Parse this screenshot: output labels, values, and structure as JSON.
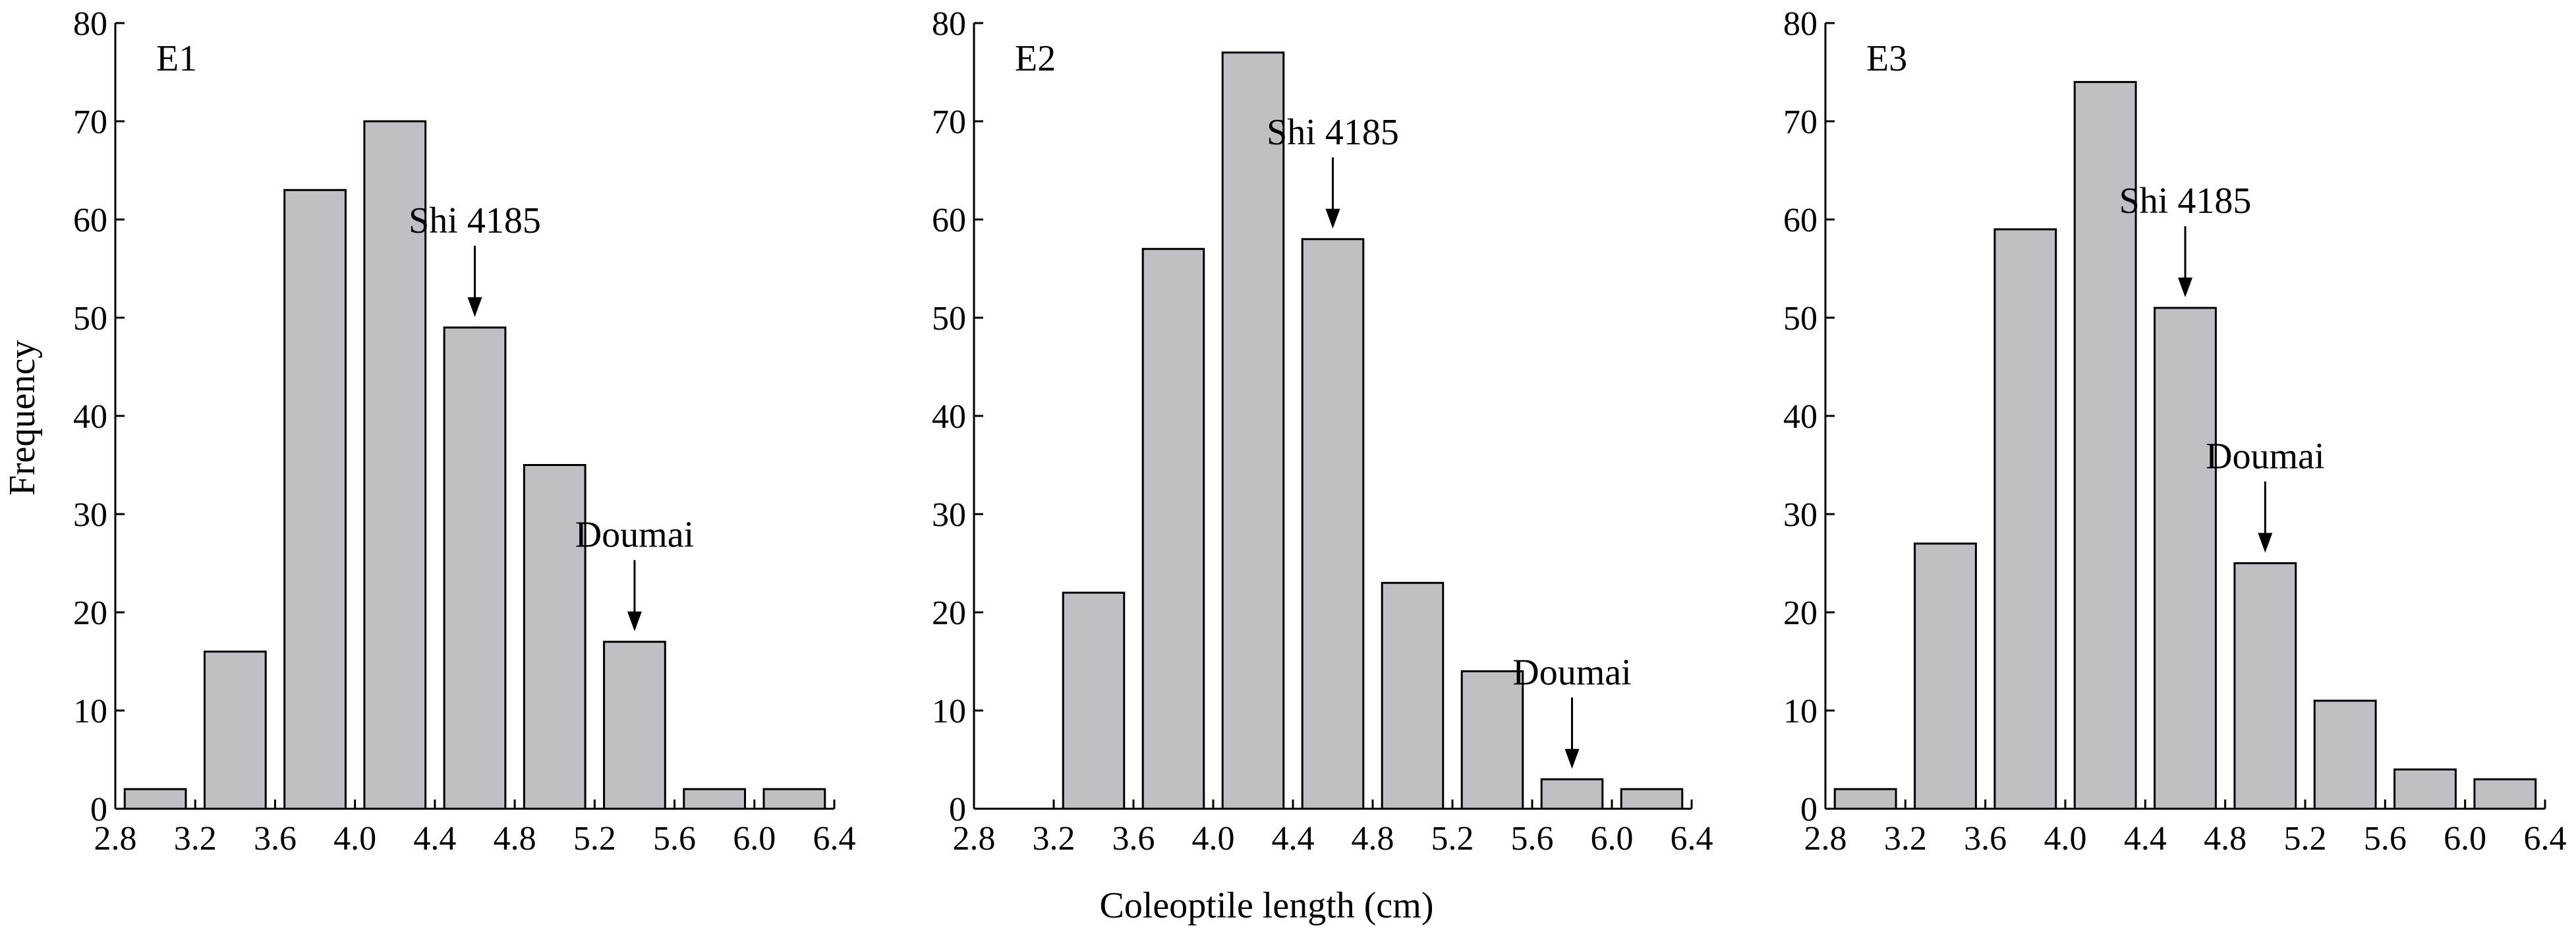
{
  "figure": {
    "ylabel": "Frequency",
    "xlabel": "Coleoptile length (cm)"
  },
  "chart_data": [
    {
      "type": "bar",
      "title": "E1",
      "bin_edges": [
        2.8,
        3.2,
        3.6,
        4.0,
        4.4,
        4.8,
        5.2,
        5.6,
        6.0,
        6.4
      ],
      "values": [
        2,
        16,
        63,
        70,
        49,
        35,
        17,
        2,
        2
      ],
      "xlim": [
        2.8,
        6.4
      ],
      "ylim": [
        0,
        80
      ],
      "xticks": [
        "2.8",
        "3.2",
        "3.6",
        "4.0",
        "4.4",
        "4.8",
        "5.2",
        "5.6",
        "6.0",
        "6.4"
      ],
      "yticks": [
        "0",
        "10",
        "20",
        "30",
        "40",
        "50",
        "60",
        "70",
        "80"
      ],
      "bar_color": "#c0bfc4",
      "annotations": [
        {
          "text": "Shi 4185",
          "bin": 4
        },
        {
          "text": "Doumai",
          "bin": 6
        }
      ]
    },
    {
      "type": "bar",
      "title": "E2",
      "bin_edges": [
        2.8,
        3.2,
        3.6,
        4.0,
        4.4,
        4.8,
        5.2,
        5.6,
        6.0,
        6.4
      ],
      "values": [
        0,
        22,
        57,
        77,
        58,
        23,
        14,
        3,
        2
      ],
      "xlim": [
        2.8,
        6.4
      ],
      "ylim": [
        0,
        80
      ],
      "xticks": [
        "2.8",
        "3.2",
        "3.6",
        "4.0",
        "4.4",
        "4.8",
        "5.2",
        "5.6",
        "6.0",
        "6.4"
      ],
      "yticks": [
        "0",
        "10",
        "20",
        "30",
        "40",
        "50",
        "60",
        "70",
        "80"
      ],
      "bar_color": "#c0bfc4",
      "annotations": [
        {
          "text": "Shi 4185",
          "bin": 4
        },
        {
          "text": "Doumai",
          "bin": 7
        }
      ]
    },
    {
      "type": "bar",
      "title": "E3",
      "bin_edges": [
        2.8,
        3.2,
        3.6,
        4.0,
        4.4,
        4.8,
        5.2,
        5.6,
        6.0,
        6.4
      ],
      "values": [
        2,
        27,
        59,
        74,
        51,
        25,
        11,
        4,
        3
      ],
      "xlim": [
        2.8,
        6.4
      ],
      "ylim": [
        0,
        80
      ],
      "xticks": [
        "2.8",
        "3.2",
        "3.6",
        "4.0",
        "4.4",
        "4.8",
        "5.2",
        "5.6",
        "6.0",
        "6.4"
      ],
      "yticks": [
        "0",
        "10",
        "20",
        "30",
        "40",
        "50",
        "60",
        "70",
        "80"
      ],
      "bar_color": "#c0bfc4",
      "annotations": [
        {
          "text": "Shi 4185",
          "bin": 4
        },
        {
          "text": "Doumai",
          "bin": 5
        }
      ]
    }
  ]
}
